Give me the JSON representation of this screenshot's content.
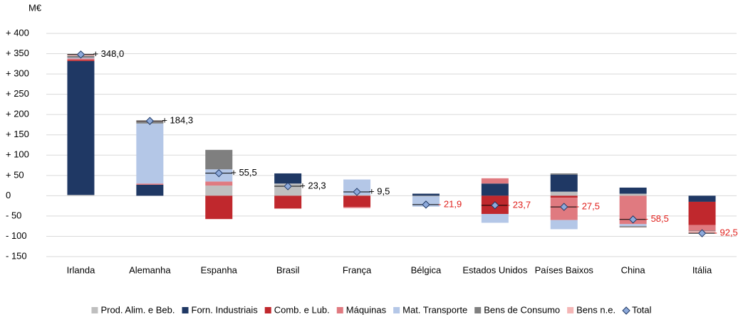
{
  "chart_data": {
    "type": "stacked-bar",
    "unit_label": "M€",
    "categories": [
      "Irlanda",
      "Alemanha",
      "Espanha",
      "Brasil",
      "França",
      "Bélgica",
      "Estados Unidos",
      "Países Baixos",
      "China",
      "Itália"
    ],
    "series": [
      {
        "name": "Prod. Alim. e Beb.",
        "color": "#bfbfbf",
        "values": [
          2,
          0,
          25,
          30,
          2,
          -1.9,
          0,
          10,
          5,
          0
        ]
      },
      {
        "name": "Forn. Industriais",
        "color": "#1f3864",
        "values": [
          330,
          27,
          0,
          25,
          0,
          5,
          30,
          42,
          15,
          -15
        ]
      },
      {
        "name": "Comb. e Lub.",
        "color": "#c0282d",
        "values": [
          3,
          0,
          -57.5,
          -31.7,
          -27.5,
          0,
          -45,
          -5,
          0,
          -57
        ]
      },
      {
        "name": "Máquinas",
        "color": "#e07a80",
        "values": [
          3,
          3,
          10,
          0,
          -3,
          0,
          13,
          -55,
          -70,
          -14
        ]
      },
      {
        "name": "Mat. Transporte",
        "color": "#b4c7e7",
        "values": [
          2,
          148,
          30,
          0,
          38,
          -25,
          -21.7,
          -22.5,
          -5,
          0
        ]
      },
      {
        "name": "Bens de Consumo",
        "color": "#7f7f7f",
        "values": [
          5,
          5,
          48,
          0,
          0,
          0,
          0,
          3,
          -3,
          -1.5
        ]
      },
      {
        "name": "Bens n.e.",
        "color": "#f4b6b6",
        "values": [
          3,
          1.3,
          0,
          0,
          0,
          0,
          0,
          0,
          -0.5,
          -5
        ]
      }
    ],
    "total": {
      "name": "Total",
      "color": "#8eaadb",
      "values": [
        348.0,
        184.3,
        55.5,
        23.3,
        9.5,
        -21.9,
        -23.7,
        -27.5,
        -58.5,
        -92.5
      ],
      "value_labels": [
        "+ 348,0",
        "+ 184,3",
        "+ 55,5",
        "+ 23,3",
        "+ 9,5",
        "- 21,9",
        "- 23,7",
        "- 27,5",
        "- 58,5",
        "- 92,5"
      ]
    },
    "ylim": [
      -150,
      400
    ],
    "yticks": [
      {
        "value": -150,
        "label": "- 150"
      },
      {
        "value": -100,
        "label": "- 100"
      },
      {
        "value": -50,
        "label": "- 50"
      },
      0,
      {
        "value": 50,
        "label": "+ 50"
      },
      {
        "value": 100,
        "label": "+ 100"
      },
      {
        "value": 150,
        "label": "+ 150"
      },
      {
        "value": 200,
        "label": "+ 200"
      },
      {
        "value": 250,
        "label": "+ 250"
      },
      {
        "value": 300,
        "label": "+ 300"
      },
      {
        "value": 350,
        "label": "+ 350"
      },
      {
        "value": 400,
        "label": "+ 400"
      }
    ],
    "grid": true,
    "legend": "bottom"
  }
}
